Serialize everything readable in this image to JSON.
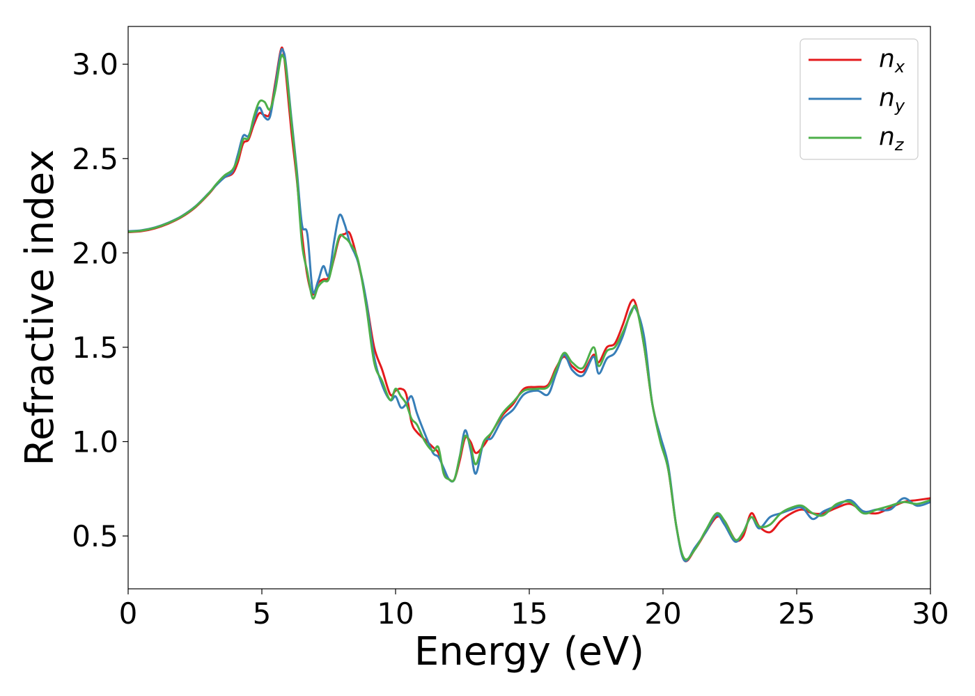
{
  "chart_data": {
    "type": "line",
    "title": "",
    "xlabel": "Energy (eV)",
    "ylabel": "Refractive index",
    "xlim": [
      0,
      30
    ],
    "ylim": [
      0.22,
      3.2
    ],
    "xticks": [
      0,
      5,
      10,
      15,
      20,
      25,
      30
    ],
    "xtick_labels": [
      "0",
      "5",
      "10",
      "15",
      "20",
      "25",
      "30"
    ],
    "yticks": [
      0.5,
      1.0,
      1.5,
      2.0,
      2.5,
      3.0
    ],
    "ytick_labels": [
      "0.5",
      "1.0",
      "1.5",
      "2.0",
      "2.5",
      "3.0"
    ],
    "grid": false,
    "legend": {
      "placement": "top-right",
      "entries": [
        {
          "base": "n",
          "sub": "x",
          "color": "#e41a1c"
        },
        {
          "base": "n",
          "sub": "y",
          "color": "#377eb8"
        },
        {
          "base": "n",
          "sub": "z",
          "color": "#4daf4a"
        }
      ]
    },
    "series": [
      {
        "color": "#e41a1c",
        "x": [
          0,
          0.5,
          1,
          1.5,
          2,
          2.5,
          3,
          3.3,
          3.6,
          3.9,
          4.1,
          4.3,
          4.5,
          4.7,
          4.9,
          5.1,
          5.3,
          5.5,
          5.7,
          5.8,
          5.9,
          6.1,
          6.3,
          6.5,
          6.7,
          6.9,
          7.1,
          7.3,
          7.5,
          7.7,
          7.9,
          8.1,
          8.3,
          8.6,
          8.9,
          9.2,
          9.5,
          9.8,
          10.0,
          10.2,
          10.4,
          10.6,
          10.8,
          11.1,
          11.4,
          11.6,
          11.8,
          12.0,
          12.2,
          12.4,
          12.6,
          12.8,
          13.0,
          13.3,
          13.6,
          14.0,
          14.4,
          14.8,
          15.3,
          15.7,
          16.0,
          16.3,
          16.6,
          17.0,
          17.4,
          17.6,
          17.9,
          18.2,
          18.5,
          18.8,
          19.0,
          19.3,
          19.6,
          19.9,
          20.2,
          20.5,
          20.8,
          21.2,
          21.6,
          22.0,
          22.3,
          22.7,
          23.0,
          23.3,
          23.6,
          24.0,
          24.4,
          24.8,
          25.2,
          25.6,
          26.0,
          26.5,
          27.0,
          27.5,
          28.0,
          28.5,
          29.0,
          29.5,
          30.0
        ],
        "y": [
          2.11,
          2.115,
          2.13,
          2.155,
          2.19,
          2.24,
          2.31,
          2.36,
          2.4,
          2.42,
          2.48,
          2.58,
          2.6,
          2.68,
          2.74,
          2.73,
          2.74,
          2.9,
          3.07,
          3.07,
          2.95,
          2.65,
          2.4,
          2.1,
          1.88,
          1.78,
          1.84,
          1.86,
          1.87,
          1.97,
          2.08,
          2.1,
          2.1,
          1.95,
          1.75,
          1.5,
          1.38,
          1.25,
          1.27,
          1.28,
          1.25,
          1.1,
          1.05,
          1.01,
          0.97,
          0.94,
          0.85,
          0.8,
          0.8,
          0.9,
          1.02,
          1.0,
          0.94,
          0.98,
          1.05,
          1.14,
          1.2,
          1.28,
          1.29,
          1.3,
          1.39,
          1.45,
          1.4,
          1.37,
          1.46,
          1.42,
          1.5,
          1.52,
          1.62,
          1.74,
          1.72,
          1.5,
          1.2,
          1.02,
          0.85,
          0.55,
          0.37,
          0.43,
          0.52,
          0.6,
          0.58,
          0.48,
          0.5,
          0.62,
          0.55,
          0.52,
          0.58,
          0.62,
          0.64,
          0.62,
          0.62,
          0.65,
          0.67,
          0.63,
          0.62,
          0.65,
          0.68,
          0.69,
          0.7
        ]
      },
      {
        "color": "#377eb8",
        "x": [
          0,
          0.5,
          1,
          1.5,
          2,
          2.5,
          3,
          3.3,
          3.6,
          3.9,
          4.1,
          4.3,
          4.5,
          4.7,
          4.9,
          5.1,
          5.3,
          5.5,
          5.7,
          5.8,
          5.9,
          6.1,
          6.3,
          6.5,
          6.7,
          6.9,
          7.1,
          7.3,
          7.5,
          7.7,
          7.9,
          8.1,
          8.3,
          8.6,
          8.9,
          9.2,
          9.5,
          9.8,
          10.0,
          10.2,
          10.4,
          10.6,
          10.8,
          11.1,
          11.4,
          11.6,
          11.8,
          12.0,
          12.2,
          12.4,
          12.6,
          12.8,
          13.0,
          13.3,
          13.6,
          14.0,
          14.4,
          14.8,
          15.3,
          15.7,
          16.0,
          16.3,
          16.6,
          17.0,
          17.4,
          17.6,
          17.9,
          18.2,
          18.5,
          18.8,
          19.0,
          19.3,
          19.6,
          19.9,
          20.2,
          20.5,
          20.8,
          21.2,
          21.6,
          22.0,
          22.3,
          22.7,
          23.0,
          23.3,
          23.6,
          24.0,
          24.4,
          24.8,
          25.2,
          25.6,
          26.0,
          26.5,
          27.0,
          27.5,
          28.0,
          28.5,
          29.0,
          29.5,
          30.0
        ],
        "y": [
          2.115,
          2.12,
          2.135,
          2.16,
          2.195,
          2.245,
          2.315,
          2.36,
          2.4,
          2.43,
          2.52,
          2.62,
          2.62,
          2.7,
          2.77,
          2.72,
          2.72,
          2.88,
          3.06,
          3.07,
          3.0,
          2.72,
          2.45,
          2.15,
          2.1,
          1.8,
          1.85,
          1.93,
          1.88,
          2.06,
          2.2,
          2.15,
          2.05,
          1.95,
          1.75,
          1.45,
          1.3,
          1.22,
          1.24,
          1.18,
          1.2,
          1.24,
          1.15,
          1.04,
          0.94,
          0.92,
          0.86,
          0.8,
          0.8,
          0.92,
          1.06,
          0.96,
          0.83,
          1.0,
          1.02,
          1.12,
          1.17,
          1.25,
          1.27,
          1.25,
          1.36,
          1.46,
          1.38,
          1.35,
          1.45,
          1.36,
          1.44,
          1.47,
          1.56,
          1.69,
          1.7,
          1.55,
          1.2,
          1.03,
          0.87,
          0.55,
          0.37,
          0.44,
          0.52,
          0.61,
          0.56,
          0.47,
          0.52,
          0.6,
          0.54,
          0.6,
          0.62,
          0.64,
          0.65,
          0.59,
          0.63,
          0.66,
          0.69,
          0.63,
          0.64,
          0.64,
          0.7,
          0.66,
          0.68
        ]
      },
      {
        "color": "#4daf4a",
        "x": [
          0,
          0.5,
          1,
          1.5,
          2,
          2.5,
          3,
          3.3,
          3.6,
          3.9,
          4.1,
          4.3,
          4.5,
          4.7,
          4.9,
          5.1,
          5.3,
          5.5,
          5.7,
          5.8,
          5.9,
          6.1,
          6.3,
          6.5,
          6.7,
          6.9,
          7.1,
          7.3,
          7.5,
          7.7,
          7.9,
          8.1,
          8.3,
          8.6,
          8.9,
          9.2,
          9.5,
          9.8,
          10.0,
          10.2,
          10.4,
          10.6,
          10.8,
          11.1,
          11.4,
          11.6,
          11.8,
          12.0,
          12.2,
          12.4,
          12.6,
          12.8,
          13.0,
          13.3,
          13.6,
          14.0,
          14.4,
          14.8,
          15.3,
          15.7,
          16.0,
          16.3,
          16.6,
          17.0,
          17.4,
          17.6,
          17.9,
          18.2,
          18.5,
          18.8,
          19.0,
          19.3,
          19.6,
          19.9,
          20.2,
          20.5,
          20.8,
          21.2,
          21.6,
          22.0,
          22.3,
          22.7,
          23.0,
          23.3,
          23.6,
          24.0,
          24.4,
          24.8,
          25.2,
          25.6,
          26.0,
          26.5,
          27.0,
          27.5,
          28.0,
          28.5,
          29.0,
          29.5,
          30.0
        ],
        "y": [
          2.112,
          2.118,
          2.133,
          2.158,
          2.193,
          2.243,
          2.313,
          2.365,
          2.41,
          2.44,
          2.5,
          2.6,
          2.61,
          2.72,
          2.8,
          2.8,
          2.76,
          2.86,
          3.03,
          3.04,
          2.98,
          2.7,
          2.42,
          2.05,
          1.9,
          1.76,
          1.82,
          1.85,
          1.86,
          1.98,
          2.09,
          2.08,
          2.05,
          1.96,
          1.72,
          1.42,
          1.32,
          1.22,
          1.28,
          1.24,
          1.2,
          1.12,
          1.09,
          1.0,
          0.95,
          0.97,
          0.83,
          0.8,
          0.8,
          0.92,
          1.03,
          0.98,
          0.88,
          1.0,
          1.05,
          1.15,
          1.21,
          1.27,
          1.28,
          1.29,
          1.38,
          1.47,
          1.42,
          1.39,
          1.5,
          1.4,
          1.48,
          1.5,
          1.58,
          1.68,
          1.71,
          1.5,
          1.2,
          1.0,
          0.85,
          0.55,
          0.38,
          0.43,
          0.53,
          0.62,
          0.58,
          0.48,
          0.52,
          0.6,
          0.55,
          0.56,
          0.62,
          0.65,
          0.66,
          0.62,
          0.61,
          0.67,
          0.68,
          0.62,
          0.64,
          0.66,
          0.68,
          0.67,
          0.69
        ]
      }
    ]
  }
}
